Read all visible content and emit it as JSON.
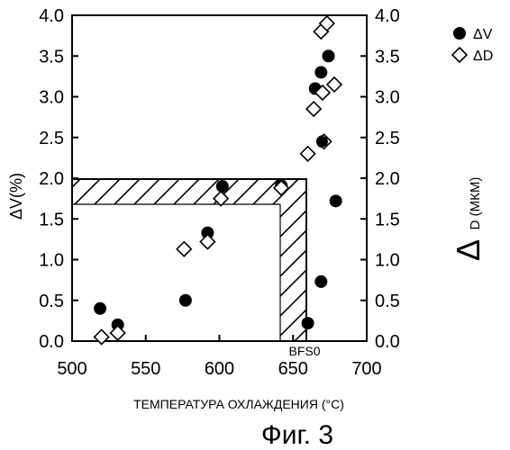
{
  "chart_data": {
    "type": "scatter",
    "xlabel": "ТЕМПЕРАТУРА ОХЛАЖДЕНИЯ (°C)",
    "ylabel_left": "ΔV(%)",
    "ylabel_right_symbol": "Δ",
    "ylabel_right_sub": "D (МКМ)",
    "xlim": [
      500,
      700
    ],
    "ylim": [
      0,
      4.0
    ],
    "x_ticks": [
      "500",
      "550",
      "600",
      "650",
      "700"
    ],
    "y_ticks": [
      "0.0",
      "0.5",
      "1.0",
      "1.5",
      "2.0",
      "2.5",
      "3.0",
      "3.5",
      "4.0"
    ],
    "grid": false,
    "legend_position": "top-right",
    "annotation": "BFS0",
    "series": [
      {
        "name": "ΔV",
        "marker": "filled-circle",
        "color": "#000000",
        "points": [
          {
            "x": 519,
            "y": 0.4
          },
          {
            "x": 531,
            "y": 0.2
          },
          {
            "x": 577,
            "y": 0.5
          },
          {
            "x": 592,
            "y": 1.33
          },
          {
            "x": 602,
            "y": 1.9
          },
          {
            "x": 642,
            "y": 1.91
          },
          {
            "x": 660,
            "y": 0.22
          },
          {
            "x": 665,
            "y": 3.1
          },
          {
            "x": 669,
            "y": 3.3
          },
          {
            "x": 669,
            "y": 0.73
          },
          {
            "x": 670,
            "y": 2.45
          },
          {
            "x": 674,
            "y": 3.5
          },
          {
            "x": 679,
            "y": 1.72
          }
        ]
      },
      {
        "name": "ΔD",
        "marker": "open-diamond",
        "color": "#000000",
        "points": [
          {
            "x": 520,
            "y": 0.05
          },
          {
            "x": 531,
            "y": 0.1
          },
          {
            "x": 576,
            "y": 1.13
          },
          {
            "x": 592,
            "y": 1.22
          },
          {
            "x": 601,
            "y": 1.75
          },
          {
            "x": 642,
            "y": 1.88
          },
          {
            "x": 660,
            "y": 2.3
          },
          {
            "x": 664,
            "y": 2.85
          },
          {
            "x": 669,
            "y": 3.8
          },
          {
            "x": 670,
            "y": 3.05
          },
          {
            "x": 673,
            "y": 3.9
          },
          {
            "x": 678,
            "y": 3.15
          },
          {
            "x": 671,
            "y": 2.45
          }
        ]
      }
    ]
  },
  "caption": "Фиг. 3"
}
